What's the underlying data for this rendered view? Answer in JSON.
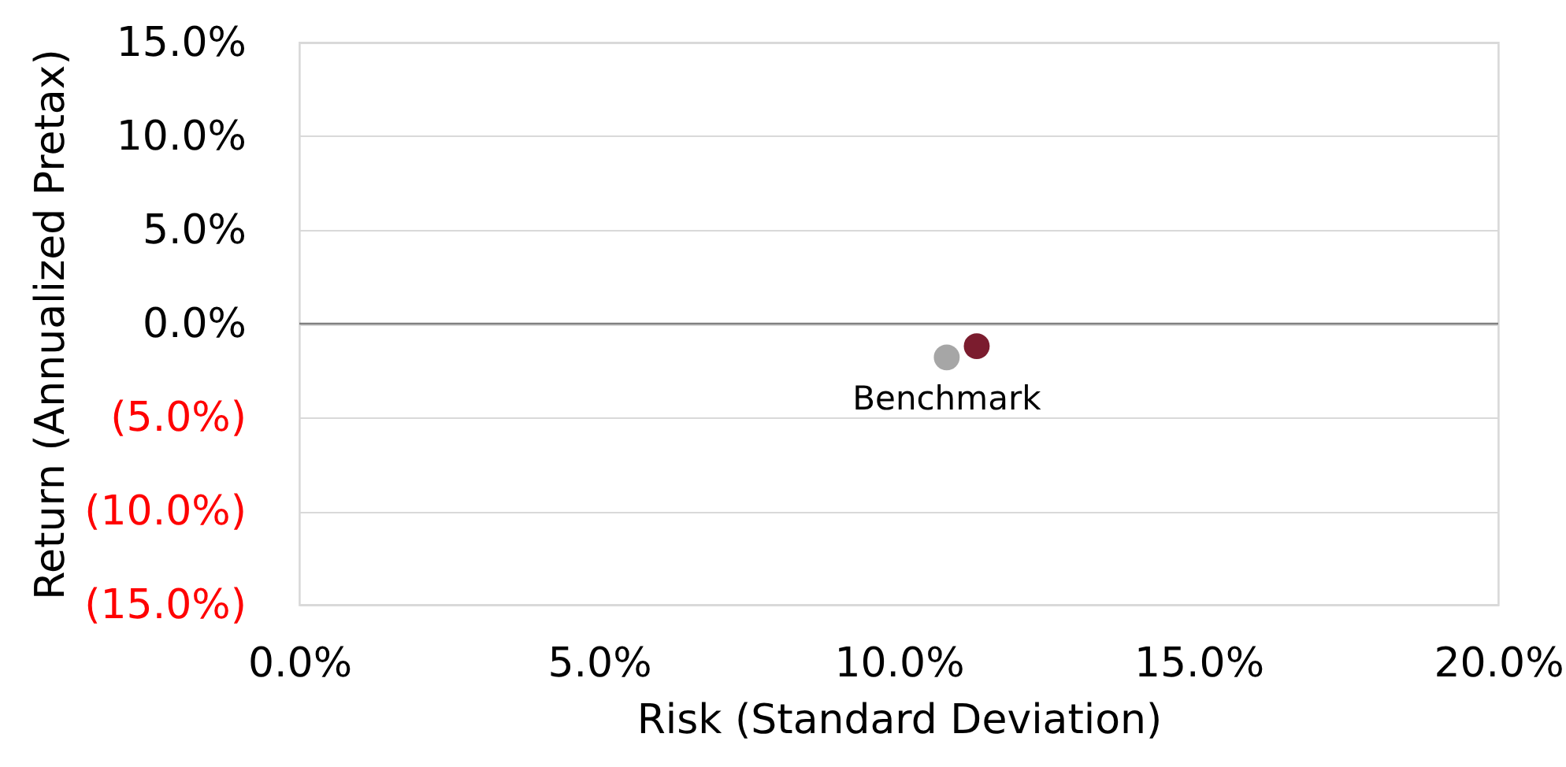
{
  "chart_data": {
    "type": "scatter",
    "xlabel": "Risk (Standard Deviation)",
    "ylabel": "Return (Annualized Pretax)",
    "series": [
      {
        "color": "#7b1c2e",
        "x": [
          11.3
        ],
        "values": [
          -1.2
        ]
      },
      {
        "name": "Benchmark",
        "color": "#a6a6a6",
        "x": [
          10.8
        ],
        "values": [
          -1.8
        ]
      }
    ],
    "xlim": [
      0,
      20
    ],
    "xticks": [
      {
        "value": 0,
        "label": "0.0%"
      },
      {
        "value": 5,
        "label": "5.0%"
      },
      {
        "value": 10,
        "label": "10.0%"
      },
      {
        "value": 15,
        "label": "15.0%"
      },
      {
        "value": 20,
        "label": "20.0%"
      }
    ],
    "ylim": [
      -15,
      15
    ],
    "yticks": [
      {
        "value": 15,
        "label": "15.0%"
      },
      {
        "value": 10,
        "label": "10.0%"
      },
      {
        "value": 5,
        "label": "5.0%"
      },
      {
        "value": 0,
        "label": "0.0%"
      },
      {
        "value": -5,
        "label": "(5.0%)"
      },
      {
        "value": -10,
        "label": "(10.0%)"
      },
      {
        "value": -15,
        "label": "(15.0%)"
      }
    ],
    "ref_lines": [
      {
        "axis": "y",
        "value": 0,
        "color": "#808080"
      }
    ],
    "grid": "y",
    "legend": false,
    "marker": "circle"
  }
}
